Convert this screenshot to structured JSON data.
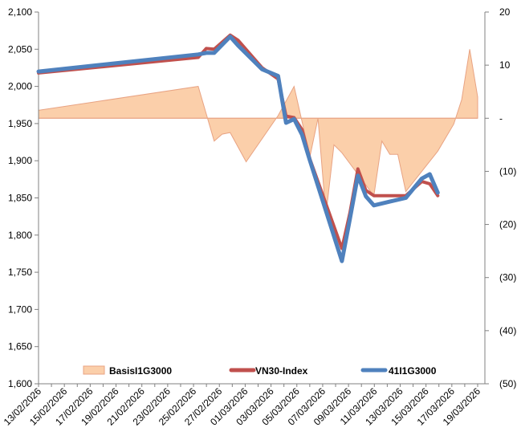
{
  "chart_data": {
    "type": "line",
    "x_labels": [
      "13/02/2026",
      "15/02/2026",
      "17/02/2026",
      "19/02/2026",
      "21/02/2026",
      "23/02/2026",
      "25/02/2026",
      "27/02/2026",
      "01/03/2026",
      "03/03/2026",
      "05/03/2026",
      "07/03/2026",
      "09/03/2026",
      "11/03/2026",
      "13/03/2026",
      "15/03/2026",
      "17/03/2026",
      "19/03/2026"
    ],
    "y_left": {
      "min": 1600,
      "max": 2100,
      "step": 50,
      "ticks": [
        "1,600",
        "1,650",
        "1,700",
        "1,750",
        "1,800",
        "1,850",
        "1,900",
        "1,950",
        "2,000",
        "2,050",
        "2,100"
      ]
    },
    "y_right": {
      "min": -50,
      "max": 20,
      "step": 10,
      "ticks": [
        "(50)",
        "(40)",
        "(30)",
        "(20)",
        "(10)",
        "-",
        "10",
        "20"
      ]
    },
    "series": [
      {
        "name": "BasisI1G3000",
        "type": "area",
        "axis": "right",
        "color": "#FBCFAA",
        "stroke": "#E8A383",
        "points": [
          [
            0,
            1.5
          ],
          [
            10,
            6.0
          ],
          [
            11,
            -4.3
          ],
          [
            11.5,
            -3.0
          ],
          [
            12,
            -2.7
          ],
          [
            13,
            -8.2
          ],
          [
            15,
            0.5
          ],
          [
            16,
            6.0
          ],
          [
            17,
            -7.2
          ],
          [
            17.5,
            0
          ],
          [
            18,
            -18.2
          ],
          [
            18.5,
            -5.0
          ],
          [
            19,
            -6.5
          ],
          [
            21,
            -14.6
          ],
          [
            21.5,
            -4.3
          ],
          [
            22,
            -6.8
          ],
          [
            22.5,
            -6.8
          ],
          [
            23,
            -13.8
          ],
          [
            25,
            -6.2
          ],
          [
            26,
            -1.1
          ],
          [
            26.5,
            3.5
          ],
          [
            27,
            13.0
          ],
          [
            27.5,
            4.0
          ]
        ]
      },
      {
        "name": "VN30-Index",
        "type": "line",
        "axis": "left",
        "color": "#C0504D",
        "points": [
          [
            0,
            2018
          ],
          [
            10,
            2039
          ],
          [
            10.5,
            2051
          ],
          [
            11,
            2050
          ],
          [
            12,
            2069
          ],
          [
            12.5,
            2062
          ],
          [
            14,
            2025
          ],
          [
            15,
            2010
          ],
          [
            15.5,
            1960
          ],
          [
            16,
            1958
          ],
          [
            16.5,
            1942
          ],
          [
            17,
            1902
          ],
          [
            19,
            1782
          ],
          [
            19.5,
            1830
          ],
          [
            20,
            1889
          ],
          [
            20.5,
            1860
          ],
          [
            21,
            1853
          ],
          [
            22,
            1853
          ],
          [
            23,
            1853
          ],
          [
            24,
            1872
          ],
          [
            24.5,
            1869
          ],
          [
            25,
            1853
          ]
        ]
      },
      {
        "name": "41I1G3000",
        "type": "line",
        "axis": "left",
        "color": "#4F81BD",
        "points": [
          [
            0,
            2020
          ],
          [
            10,
            2043
          ],
          [
            10.5,
            2045
          ],
          [
            11,
            2045
          ],
          [
            12,
            2067
          ],
          [
            12.5,
            2055
          ],
          [
            14,
            2023
          ],
          [
            15,
            2014
          ],
          [
            15.5,
            1951
          ],
          [
            16,
            1956
          ],
          [
            16.5,
            1935
          ],
          [
            17,
            1900
          ],
          [
            19,
            1765
          ],
          [
            19.5,
            1822
          ],
          [
            20,
            1880
          ],
          [
            20.5,
            1852
          ],
          [
            21,
            1840
          ],
          [
            22,
            1845
          ],
          [
            23,
            1850
          ],
          [
            24,
            1876
          ],
          [
            24.5,
            1882
          ],
          [
            25,
            1857
          ]
        ]
      }
    ],
    "legend": [
      "BasisI1G3000",
      "VN30-Index",
      "41I1G3000"
    ],
    "legend_position": "bottom-inside"
  }
}
